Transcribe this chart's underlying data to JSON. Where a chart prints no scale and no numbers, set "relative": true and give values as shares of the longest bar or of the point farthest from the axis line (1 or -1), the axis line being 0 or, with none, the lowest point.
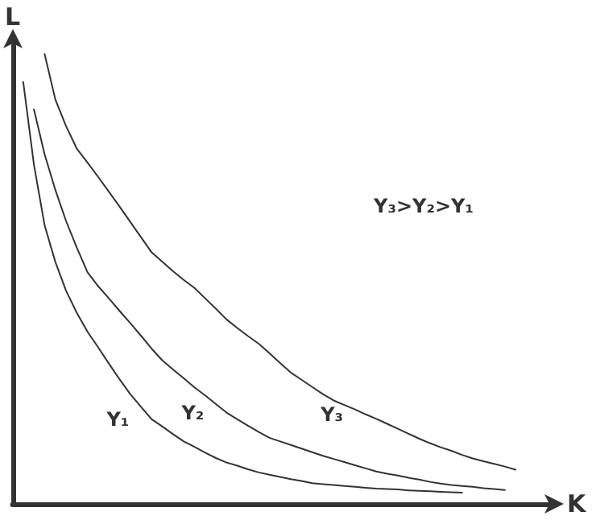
{
  "chart_data": {
    "type": "line",
    "relative": true,
    "xlabel": "K",
    "ylabel": "L",
    "marker": "none",
    "line_style": "solid",
    "grid": false,
    "legend": false,
    "annotations": [
      "Y₃>Y₂>Y₁"
    ],
    "categories": [
      null,
      null,
      null,
      null,
      null,
      null,
      null,
      null,
      null,
      null,
      null,
      null,
      null,
      null,
      null,
      null,
      null,
      null,
      null,
      null,
      null,
      null,
      null,
      null,
      null,
      null,
      null,
      null,
      null,
      null,
      null,
      null,
      null,
      null,
      null,
      null,
      null,
      null,
      null,
      null,
      null,
      null,
      null,
      null,
      null,
      null,
      null,
      null,
      null,
      null,
      null
    ],
    "series": [
      {
        "name": "Y₁",
        "color": "#333333",
        "values": [
          null,
          0.938,
          0.754,
          0.619,
          0.538,
          0.474,
          0.425,
          0.383,
          0.348,
          0.312,
          0.277,
          0.244,
          0.216,
          0.188,
          0.172,
          0.155,
          0.139,
          0.127,
          0.114,
          0.102,
          0.092,
          0.085,
          0.077,
          0.07,
          0.065,
          0.06,
          0.055,
          0.051,
          0.046,
          0.044,
          0.042,
          0.04,
          0.038,
          0.036,
          0.034,
          0.033,
          0.032,
          0.03,
          0.029,
          0.028,
          0.027,
          0.026,
          0.025,
          null,
          null,
          null,
          null,
          null,
          null,
          null,
          null
        ]
      },
      {
        "name": "Y₂",
        "color": "#333333",
        "values": [
          null,
          null,
          0.877,
          0.777,
          0.698,
          0.629,
          0.57,
          0.515,
          0.484,
          0.457,
          0.429,
          0.402,
          0.374,
          0.345,
          0.319,
          0.299,
          0.279,
          0.259,
          0.241,
          0.222,
          0.203,
          0.188,
          0.174,
          0.16,
          0.147,
          0.139,
          0.131,
          0.123,
          0.115,
          0.107,
          0.1,
          0.093,
          0.086,
          0.079,
          0.072,
          0.067,
          0.063,
          0.058,
          0.054,
          0.049,
          0.045,
          0.042,
          0.04,
          0.038,
          0.035,
          0.033,
          0.031,
          null,
          null,
          null,
          null
        ]
      },
      {
        "name": "Y₃",
        "color": "#333333",
        "values": [
          null,
          null,
          null,
          1.0,
          0.899,
          0.84,
          0.79,
          0.759,
          0.727,
          0.694,
          0.661,
          0.627,
          0.593,
          0.559,
          0.538,
          0.517,
          0.498,
          0.48,
          0.457,
          0.434,
          0.41,
          0.391,
          0.373,
          0.356,
          0.335,
          0.313,
          0.292,
          0.276,
          0.26,
          0.244,
          0.23,
          0.22,
          0.21,
          0.199,
          0.189,
          0.178,
          0.167,
          0.156,
          0.145,
          0.135,
          0.126,
          0.118,
          0.109,
          0.101,
          0.095,
          0.089,
          0.083,
          0.076,
          null,
          null,
          null
        ]
      }
    ]
  }
}
